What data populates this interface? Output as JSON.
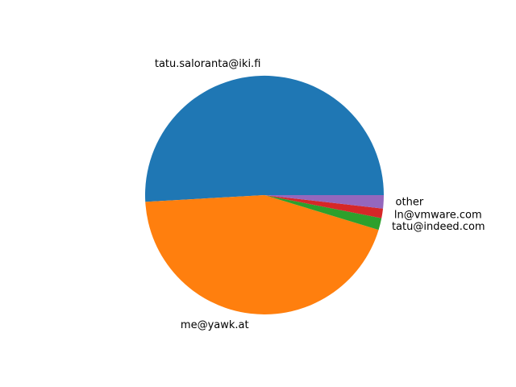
{
  "chart_data": {
    "type": "pie",
    "start_angle_deg": 0,
    "direction": "counterclockwise",
    "slices": [
      {
        "label": "tatu.saloranta@iki.fi",
        "value": 50.9,
        "color": "#1f77b4"
      },
      {
        "label": "me@yawk.at",
        "value": 44.4,
        "color": "#ff7f0e"
      },
      {
        "label": "tatu@indeed.com",
        "value": 1.6,
        "color": "#2ca02c"
      },
      {
        "label": "ln@vmware.com",
        "value": 1.3,
        "color": "#d62728"
      },
      {
        "label": "other",
        "value": 1.8,
        "color": "#9467bd"
      }
    ]
  }
}
